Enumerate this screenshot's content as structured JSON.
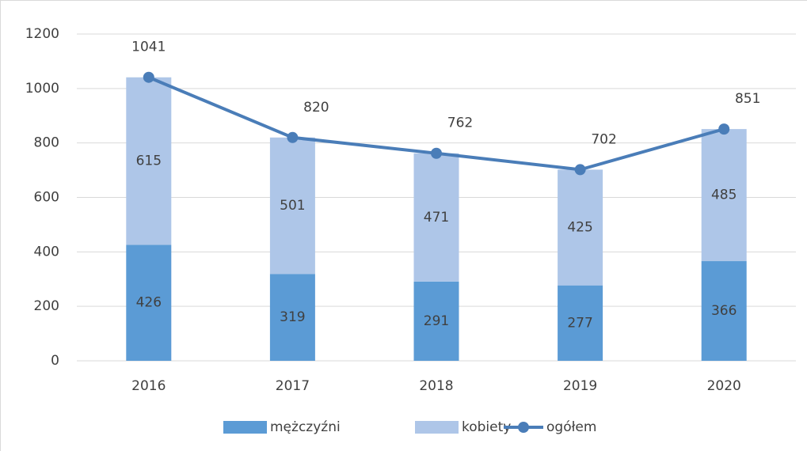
{
  "chart_data": {
    "type": "bar",
    "stacked": true,
    "categories": [
      "2016",
      "2017",
      "2018",
      "2019",
      "2020"
    ],
    "series": [
      {
        "name": "mężczyźni",
        "color": "#5b9bd5",
        "values": [
          426,
          319,
          291,
          277,
          366
        ]
      },
      {
        "name": "kobiety",
        "color": "#aec6e8",
        "values": [
          615,
          501,
          471,
          425,
          485
        ]
      },
      {
        "name": "ogółem",
        "type": "line",
        "color": "#4a7db8",
        "values": [
          1041,
          820,
          762,
          702,
          851
        ]
      }
    ],
    "ylim": [
      0,
      1200
    ],
    "yticks": [
      0,
      200,
      400,
      600,
      800,
      1000,
      1200
    ],
    "grid": true,
    "legend": "bottom"
  }
}
